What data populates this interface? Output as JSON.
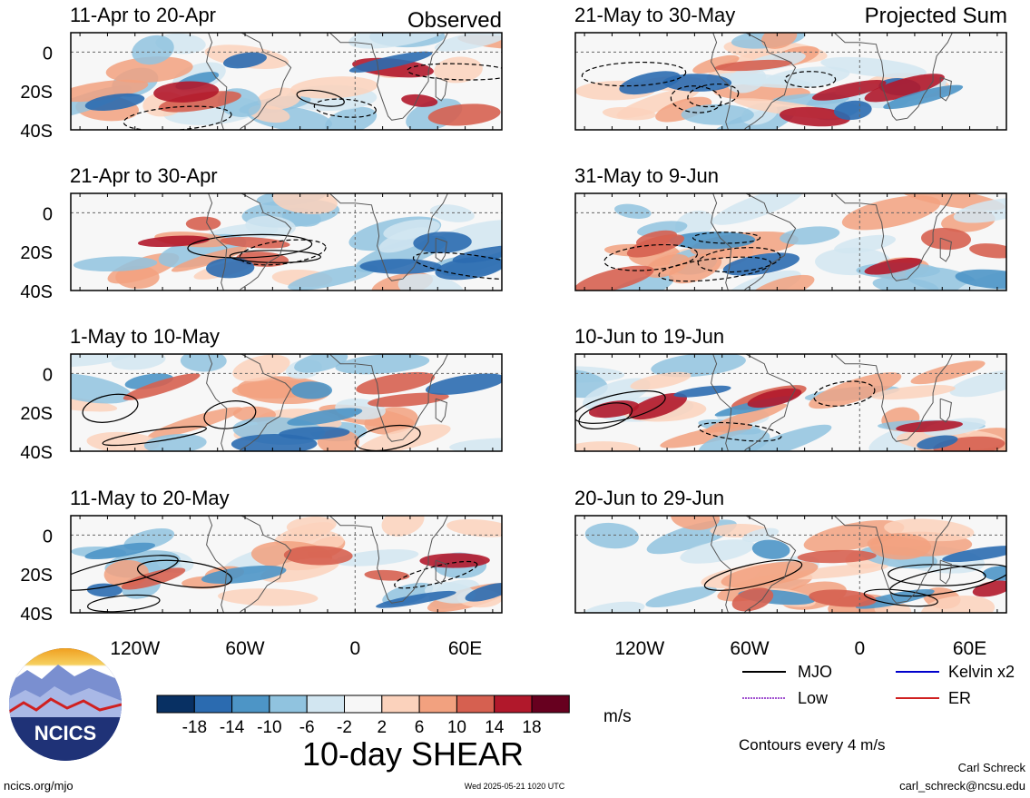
{
  "chart_data": {
    "type": "heatmap",
    "title": "10-day SHEAR",
    "units": "m/s",
    "contour_note": "Contours every 4 m/s",
    "x_ticks": [
      "120W",
      "60W",
      "0",
      "60E"
    ],
    "y_ticks": [
      "0",
      "20S",
      "40S"
    ],
    "colorbar": {
      "levels": [
        "-18",
        "-14",
        "-10",
        "-6",
        "-2",
        "2",
        "6",
        "10",
        "14",
        "18"
      ],
      "colors": [
        "#083063",
        "#2b6bb0",
        "#4d95c6",
        "#90c3df",
        "#d2e6f1",
        "#f7f7f7",
        "#fbd2bc",
        "#f2a17f",
        "#d66050",
        "#b1182b",
        "#67001f"
      ]
    },
    "columns": [
      {
        "header_right": "Observed",
        "panels": [
          {
            "period": "11-Apr to 20-Apr"
          },
          {
            "period": "21-Apr to 30-Apr"
          },
          {
            "period": "1-May to 10-May"
          },
          {
            "period": "11-May to 20-May"
          }
        ]
      },
      {
        "header_right": "Projected Sum",
        "panels": [
          {
            "period": "21-May to 30-May"
          },
          {
            "period": "31-May to 9-Jun"
          },
          {
            "period": "10-Jun to 19-Jun"
          },
          {
            "period": "20-Jun to 29-Jun"
          }
        ]
      }
    ],
    "legend": [
      {
        "label": "MJO",
        "color": "#000000"
      },
      {
        "label": "Kelvin x2",
        "color": "#0000cc"
      },
      {
        "label": "Low",
        "color": "#a050d0"
      },
      {
        "label": "ER",
        "color": "#d02020"
      }
    ]
  },
  "footer": {
    "logo_text": "NCICS",
    "url": "ncics.org/mjo",
    "timestamp": "Wed 2025-05-21 1020 UTC",
    "author": "Carl Schreck",
    "email": "carl_schreck@ncsu.edu"
  }
}
